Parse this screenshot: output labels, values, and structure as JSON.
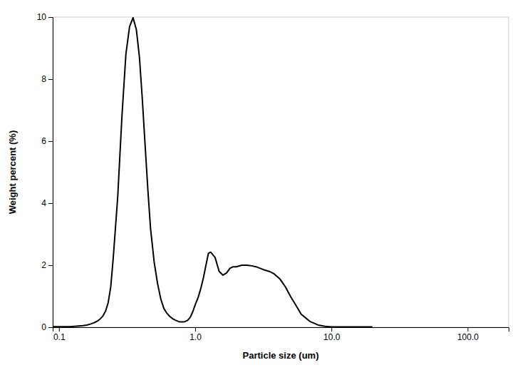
{
  "chart_data": {
    "type": "line",
    "xlabel": "Particle size (um)",
    "ylabel": "Weight percent (%)",
    "log": "x",
    "grid": false,
    "color": "#000000",
    "xlim": [
      0.09,
      200.0
    ],
    "ylim": [
      0,
      10
    ],
    "xticks": [
      0.1,
      {
        "value": 1.0,
        "label": "1.0"
      },
      {
        "value": 10.0,
        "label": "10.0"
      },
      {
        "value": 100.0,
        "label": "100.0"
      }
    ],
    "yticks": [
      0,
      2,
      4,
      6,
      8,
      10
    ],
    "x": [
      0.09,
      0.1,
      0.11,
      0.12,
      0.13,
      0.14,
      0.15,
      0.16,
      0.17,
      0.18,
      0.19,
      0.2,
      0.21,
      0.22,
      0.23,
      0.24,
      0.25,
      0.27,
      0.29,
      0.31,
      0.33,
      0.35,
      0.37,
      0.39,
      0.41,
      0.43,
      0.45,
      0.47,
      0.5,
      0.53,
      0.56,
      0.59,
      0.62,
      0.65,
      0.68,
      0.72,
      0.76,
      0.8,
      0.84,
      0.88,
      0.92,
      0.96,
      1.0,
      1.05,
      1.1,
      1.15,
      1.2,
      1.25,
      1.3,
      1.4,
      1.5,
      1.6,
      1.7,
      1.8,
      1.9,
      2.0,
      2.2,
      2.4,
      2.6,
      2.8,
      3.0,
      3.2,
      3.5,
      3.8,
      4.2,
      4.6,
      5.0,
      5.5,
      6.0,
      7.0,
      8.0,
      9.0,
      10.0,
      11.0,
      12.0,
      13.0,
      20.0
    ],
    "values": [
      0.02,
      0.02,
      0.02,
      0.02,
      0.03,
      0.04,
      0.05,
      0.07,
      0.1,
      0.14,
      0.19,
      0.26,
      0.36,
      0.52,
      0.8,
      1.3,
      2.2,
      4.2,
      6.8,
      8.8,
      9.7,
      9.98,
      9.6,
      8.7,
      7.3,
      5.8,
      4.4,
      3.2,
      2.1,
      1.4,
      0.9,
      0.6,
      0.45,
      0.35,
      0.28,
      0.22,
      0.18,
      0.17,
      0.18,
      0.22,
      0.32,
      0.5,
      0.72,
      0.95,
      1.25,
      1.6,
      2.0,
      2.38,
      2.42,
      2.25,
      1.8,
      1.68,
      1.75,
      1.9,
      1.95,
      1.95,
      2.0,
      2.0,
      1.98,
      1.95,
      1.9,
      1.85,
      1.8,
      1.72,
      1.55,
      1.3,
      1.0,
      0.7,
      0.42,
      0.18,
      0.07,
      0.03,
      0.01,
      0.01,
      0.01,
      0.01,
      0.01
    ]
  }
}
